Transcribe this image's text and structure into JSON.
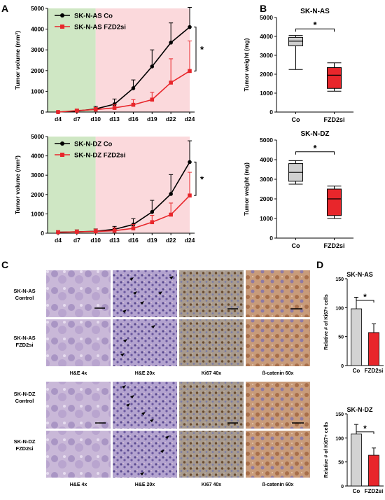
{
  "panel_labels": {
    "a": "A",
    "b": "B",
    "c": "C",
    "d": "D"
  },
  "colors": {
    "control": "#000000",
    "fzd2si": "#e8262b",
    "green_zone": "#cfe7c4",
    "pink_zone": "#fbd9dc",
    "box_grey": "#d0d0d0",
    "box_red": "#e8262b",
    "bar_grey": "#d3d3d3",
    "bar_red": "#e8262b"
  },
  "chart_data": [
    {
      "id": "a1",
      "type": "line",
      "ylabel": "Tumor volume (mm³)",
      "categories": [
        "d4",
        "d7",
        "d10",
        "d13",
        "d16",
        "d19",
        "d22",
        "d24"
      ],
      "yticks": [
        0,
        1000,
        2000,
        3000,
        4000,
        5000
      ],
      "ylim": [
        0,
        5000
      ],
      "shading": [
        {
          "from": "d4",
          "to": "d10",
          "color": "green"
        },
        {
          "from": "d10",
          "to": "d24",
          "color": "pink"
        }
      ],
      "series": [
        {
          "name": "SK-N-AS Co",
          "color": "#000000",
          "marker": "circle",
          "values": [
            0,
            50,
            150,
            380,
            1150,
            2200,
            3350,
            4100
          ],
          "errors": [
            40,
            80,
            120,
            250,
            400,
            800,
            950,
            950
          ]
        },
        {
          "name": "SK-N-AS FZD2si",
          "color": "#e8262b",
          "marker": "square",
          "values": [
            0,
            70,
            120,
            200,
            350,
            600,
            1420,
            1980
          ],
          "errors": [
            40,
            70,
            100,
            150,
            250,
            350,
            1150,
            1450
          ]
        }
      ],
      "significance": "*"
    },
    {
      "id": "a2",
      "type": "line",
      "ylabel": "Tumor volume (mm³)",
      "categories": [
        "d4",
        "d7",
        "d10",
        "d13",
        "d16",
        "d19",
        "d22",
        "d24"
      ],
      "yticks": [
        0,
        1000,
        2000,
        3000,
        4000,
        5000
      ],
      "ylim": [
        0,
        5000
      ],
      "shading": [
        {
          "from": "d4",
          "to": "d10",
          "color": "green"
        },
        {
          "from": "d10",
          "to": "d24",
          "color": "pink"
        }
      ],
      "series": [
        {
          "name": "SK-N-DZ Co",
          "color": "#000000",
          "marker": "circle",
          "values": [
            50,
            70,
            100,
            200,
            450,
            1100,
            2030,
            3680
          ],
          "errors": [
            80,
            100,
            120,
            150,
            300,
            600,
            1000,
            1100
          ]
        },
        {
          "name": "SK-N-DZ FZD2si",
          "color": "#e8262b",
          "marker": "square",
          "values": [
            50,
            70,
            90,
            130,
            250,
            570,
            960,
            1950
          ],
          "errors": [
            80,
            100,
            120,
            150,
            200,
            350,
            600,
            1200
          ]
        }
      ],
      "significance": "*"
    },
    {
      "id": "b1",
      "type": "box",
      "title": "SK-N-AS",
      "ylabel": "Tumor weight (mg)",
      "categories": [
        "Co",
        "FZD2si"
      ],
      "yticks": [
        0,
        1000,
        2000,
        3000,
        4000,
        5000
      ],
      "ylim": [
        0,
        5000
      ],
      "boxes": [
        {
          "min": 2250,
          "q1": 3500,
          "median": 3750,
          "q3": 3950,
          "max": 4050,
          "color": "#d0d0d0"
        },
        {
          "min": 1100,
          "q1": 1250,
          "median": 1950,
          "q3": 2350,
          "max": 2600,
          "color": "#e8262b"
        }
      ],
      "significance": "*"
    },
    {
      "id": "b2",
      "type": "box",
      "title": "SK-N-DZ",
      "ylabel": "Tumor weight (mg)",
      "categories": [
        "Co",
        "FZD2si"
      ],
      "yticks": [
        0,
        1000,
        2000,
        3000,
        4000,
        5000
      ],
      "ylim": [
        0,
        5000
      ],
      "boxes": [
        {
          "min": 2750,
          "q1": 2900,
          "median": 3350,
          "q3": 3800,
          "max": 3950,
          "color": "#d0d0d0"
        },
        {
          "min": 1000,
          "q1": 1150,
          "median": 2000,
          "q3": 2500,
          "max": 2650,
          "color": "#e8262b"
        }
      ],
      "significance": "*"
    },
    {
      "id": "d1",
      "type": "bar",
      "title": "SK-N-AS",
      "ylabel": "Relative # of Ki67+ cells",
      "categories": [
        "Co",
        "FZD2si"
      ],
      "yticks": [
        0,
        50,
        100,
        150
      ],
      "ylim": [
        0,
        150
      ],
      "values": [
        98,
        57
      ],
      "errors": [
        20,
        15
      ],
      "colors": [
        "#d3d3d3",
        "#e8262b"
      ],
      "significance": "*"
    },
    {
      "id": "d2",
      "type": "bar",
      "title": "SK-N-DZ",
      "ylabel": "Relative # of Ki67+ cells",
      "categories": [
        "Co",
        "FZD2si"
      ],
      "yticks": [
        0,
        50,
        100,
        150
      ],
      "ylim": [
        0,
        150
      ],
      "values": [
        108,
        64
      ],
      "errors": [
        20,
        15
      ],
      "colors": [
        "#d3d3d3",
        "#e8262b"
      ],
      "significance": "*"
    }
  ],
  "micrographs": {
    "row_labels": [
      {
        "line1": "SK-N-AS",
        "line2": "Control"
      },
      {
        "line1": "SK-N-AS",
        "line2": "FZD2si"
      },
      {
        "line1": "SK-N-DZ",
        "line2": "Control"
      },
      {
        "line1": "SK-N-DZ",
        "line2": "FZD2si"
      }
    ],
    "column_captions": [
      "H&E 4x",
      "H&E 20x",
      "Ki67 40x",
      "ß-catenin 60x"
    ]
  }
}
